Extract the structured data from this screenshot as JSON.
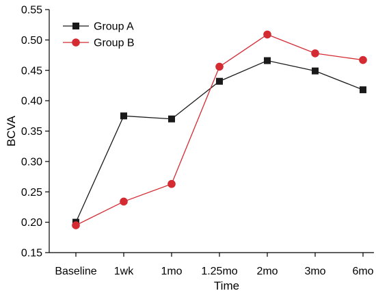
{
  "chart_data": {
    "type": "line",
    "title": "",
    "xlabel": "Time",
    "ylabel": "BCVA",
    "categories": [
      "Baseline",
      "1wk",
      "1mo",
      "1.25mo",
      "2mo",
      "3mo",
      "6mo"
    ],
    "ylim": [
      0.15,
      0.55
    ],
    "yticks": [
      "0.15",
      "0.20",
      "0.25",
      "0.30",
      "0.35",
      "0.40",
      "0.45",
      "0.50",
      "0.55"
    ],
    "legend_position": "top-left",
    "grid": false,
    "series": [
      {
        "name": "Group A",
        "marker": "square",
        "color": "#1a1a1a",
        "values": [
          0.2,
          0.375,
          0.37,
          0.432,
          0.466,
          0.449,
          0.418
        ]
      },
      {
        "name": "Group B",
        "marker": "circle",
        "color": "#d42a32",
        "values": [
          0.195,
          0.234,
          0.263,
          0.456,
          0.509,
          0.478,
          0.467
        ]
      }
    ]
  }
}
